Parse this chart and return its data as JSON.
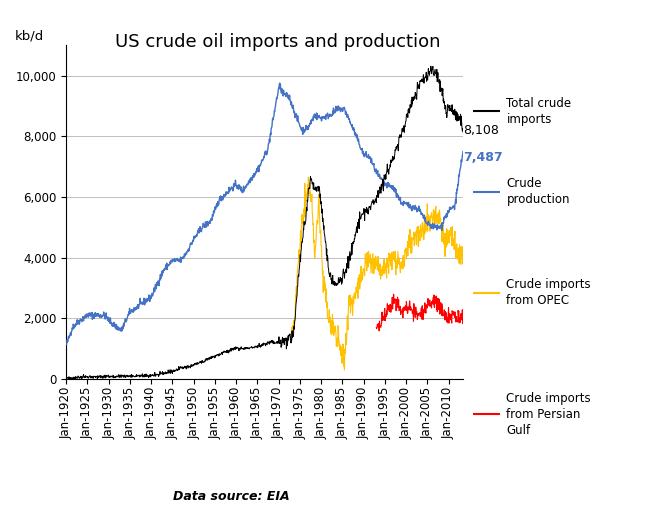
{
  "title": "US crude oil imports and production",
  "ylabel": "kb/d",
  "source_label": "Data source: EIA",
  "annotation_black": "8,108",
  "annotation_blue": "7,487",
  "legend": [
    {
      "label": "Total crude\nimports",
      "color": "#000000"
    },
    {
      "label": "Crude\nproduction",
      "color": "#4472C4"
    },
    {
      "label": "Crude imports\nfrom OPEC",
      "color": "#FFC000"
    },
    {
      "label": "Crude imports\nfrom Persian\nGulf",
      "color": "#FF0000"
    }
  ],
  "ylim": [
    0,
    11000
  ],
  "yticks": [
    0,
    2000,
    4000,
    6000,
    8000,
    10000
  ],
  "xlim_start": 1920,
  "xlim_end": 2013.5,
  "xtick_start": 1920,
  "xtick_end": 2011,
  "xtick_step": 5,
  "background_color": "#FFFFFF",
  "grid_color": "#C0C0C0",
  "title_fontsize": 13,
  "tick_fontsize": 8.5,
  "annotation_fontsize": 9
}
